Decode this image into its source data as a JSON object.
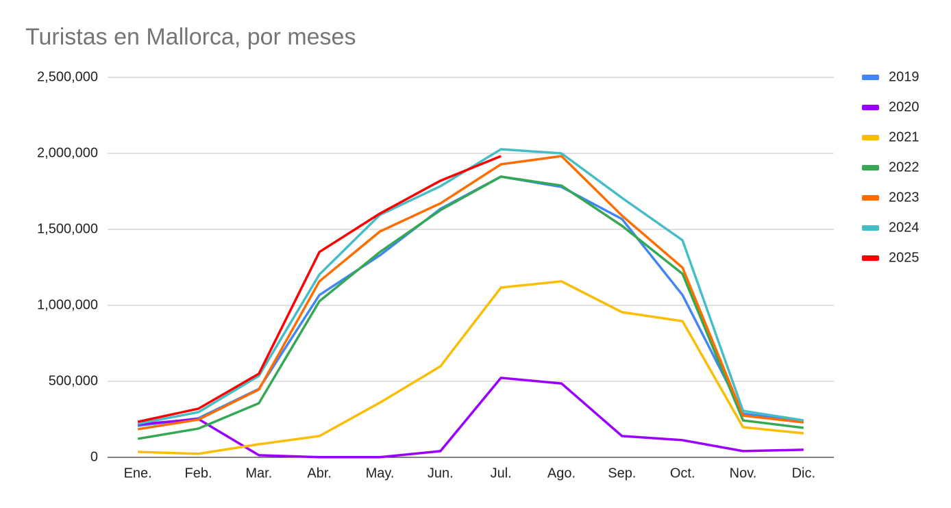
{
  "chart_data": {
    "type": "line",
    "title": "Turistas en Mallorca, por meses",
    "categories": [
      "Ene.",
      "Feb.",
      "Mar.",
      "Abr.",
      "May.",
      "Jun.",
      "Jul.",
      "Ago.",
      "Sep.",
      "Oct.",
      "Nov.",
      "Dic."
    ],
    "series": [
      {
        "name": "2019",
        "color": "#4285f4",
        "values": [
          207000,
          257000,
          450000,
          1068000,
          1329000,
          1635000,
          1847000,
          1779000,
          1568000,
          1068000,
          288000,
          234000
        ]
      },
      {
        "name": "2020",
        "color": "#9900ff",
        "values": [
          216000,
          252000,
          14000,
          1000,
          1000,
          41000,
          523000,
          486000,
          140000,
          113000,
          41000,
          50000
        ]
      },
      {
        "name": "2021",
        "color": "#fbbc04",
        "values": [
          36000,
          23000,
          86000,
          140000,
          360000,
          599000,
          1117000,
          1158000,
          955000,
          896000,
          198000,
          158000
        ]
      },
      {
        "name": "2022",
        "color": "#34a853",
        "values": [
          122000,
          189000,
          356000,
          1027000,
          1351000,
          1626000,
          1847000,
          1788000,
          1523000,
          1207000,
          243000,
          194000
        ]
      },
      {
        "name": "2023",
        "color": "#ff6d01",
        "values": [
          185000,
          248000,
          446000,
          1158000,
          1486000,
          1671000,
          1928000,
          1982000,
          1590000,
          1248000,
          275000,
          230000
        ]
      },
      {
        "name": "2024",
        "color": "#46bdc6",
        "values": [
          221000,
          297000,
          536000,
          1203000,
          1595000,
          1784000,
          2027000,
          2000000,
          1707000,
          1428000,
          306000,
          243000
        ]
      },
      {
        "name": "2025",
        "color": "#ff0000",
        "values": [
          234000,
          320000,
          550000,
          1351000,
          1604000,
          1820000,
          1982000,
          null,
          null,
          null,
          null,
          null
        ]
      }
    ],
    "ylim": [
      0,
      2500000
    ],
    "yticks": [
      0,
      {
        "value": 500000,
        "label": "500,000"
      },
      {
        "value": 1000000,
        "label": "1,000,000"
      },
      {
        "value": 1500000,
        "label": "1,500,000"
      },
      {
        "value": 2000000,
        "label": "2,000,000"
      },
      {
        "value": 2500000,
        "label": "2,500,000"
      }
    ],
    "grid": true,
    "legend": "right"
  }
}
